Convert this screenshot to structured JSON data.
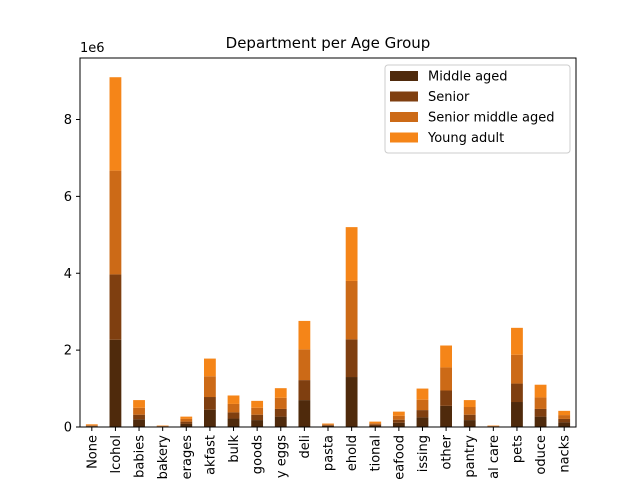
{
  "chart_data": {
    "type": "bar",
    "stacked": true,
    "title": "Department per Age Group",
    "xlabel": "",
    "ylabel": "",
    "y_multiplier_label": "1e6",
    "ylim": [
      0,
      9.6
    ],
    "yticks": [
      0,
      2,
      4,
      6,
      8
    ],
    "grid": false,
    "legend_position": "top-right",
    "categories": [
      "None",
      "lcohol",
      "babies",
      "bakery",
      "erages",
      "akfast",
      "bulk",
      "goods",
      "y eggs",
      "deli",
      "pasta",
      "ehold",
      "tional",
      "eafood",
      "issing",
      "other",
      "pantry",
      "al care",
      "pets",
      "oduce",
      "nacks"
    ],
    "series": [
      {
        "name": "Middle aged",
        "color": "#4f2a0c",
        "values": [
          0.02,
          2.27,
          0.2,
          0.01,
          0.08,
          0.45,
          0.22,
          0.18,
          0.27,
          0.7,
          0.03,
          1.3,
          0.04,
          0.11,
          0.25,
          0.55,
          0.18,
          0.01,
          0.65,
          0.27,
          0.12
        ]
      },
      {
        "name": "Senior",
        "color": "#7f3f10",
        "values": [
          0.01,
          1.7,
          0.12,
          0.01,
          0.06,
          0.33,
          0.16,
          0.14,
          0.2,
          0.52,
          0.02,
          0.98,
          0.03,
          0.08,
          0.19,
          0.4,
          0.14,
          0.01,
          0.48,
          0.2,
          0.09
        ]
      },
      {
        "name": "Senior middle aged",
        "color": "#cc6a17",
        "values": [
          0.02,
          2.7,
          0.18,
          0.01,
          0.07,
          0.54,
          0.22,
          0.18,
          0.29,
          0.8,
          0.02,
          1.52,
          0.03,
          0.1,
          0.27,
          0.6,
          0.2,
          0.01,
          0.75,
          0.3,
          0.1
        ]
      },
      {
        "name": "Young adult",
        "color": "#f58518",
        "values": [
          0.02,
          2.43,
          0.2,
          0.01,
          0.06,
          0.46,
          0.22,
          0.18,
          0.25,
          0.74,
          0.02,
          1.4,
          0.04,
          0.11,
          0.29,
          0.57,
          0.18,
          0.01,
          0.7,
          0.33,
          0.11
        ]
      }
    ]
  }
}
